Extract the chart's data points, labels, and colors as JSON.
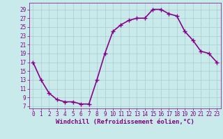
{
  "x": [
    0,
    1,
    2,
    3,
    4,
    5,
    6,
    7,
    8,
    9,
    10,
    11,
    12,
    13,
    14,
    15,
    16,
    17,
    18,
    19,
    20,
    21,
    22,
    23
  ],
  "y": [
    17,
    13,
    10,
    8.5,
    8,
    8,
    7.5,
    7.5,
    13,
    19,
    24,
    25.5,
    26.5,
    27,
    27,
    29,
    29,
    28,
    27.5,
    24,
    22,
    19.5,
    19,
    17
  ],
  "line_color": "#8b008b",
  "marker_color": "#8b008b",
  "bg_color": "#c8eaea",
  "grid_color": "#aacccc",
  "xlabel": "Windchill (Refroidissement éolien,°C)",
  "yticks": [
    7,
    9,
    11,
    13,
    15,
    17,
    19,
    21,
    23,
    25,
    27,
    29
  ],
  "xticks": [
    0,
    1,
    2,
    3,
    4,
    5,
    6,
    7,
    8,
    9,
    10,
    11,
    12,
    13,
    14,
    15,
    16,
    17,
    18,
    19,
    20,
    21,
    22,
    23
  ],
  "ylim": [
    6.5,
    30.5
  ],
  "xlim": [
    -0.5,
    23.5
  ],
  "tick_color": "#800080",
  "tick_fontsize": 5.5,
  "xlabel_fontsize": 6.5,
  "line_width": 1.2,
  "marker_size": 4
}
